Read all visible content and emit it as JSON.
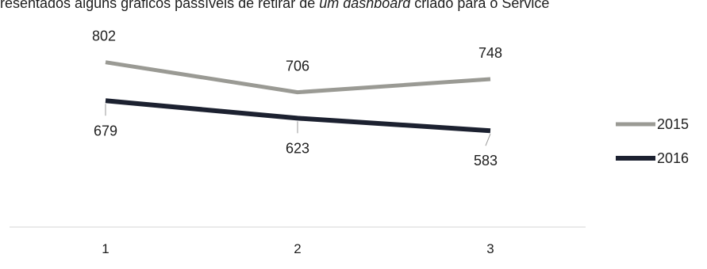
{
  "caption": {
    "prefix": "resentados alguns gráficos passíveis de retirar de ",
    "italic1": "um dashboard",
    "suffix": " criado para o Service"
  },
  "chart_data": {
    "type": "line",
    "categories": [
      "1",
      "2",
      "3"
    ],
    "series": [
      {
        "name": "2015",
        "values": [
          802,
          706,
          748
        ],
        "color": "#9a9a94"
      },
      {
        "name": "2016",
        "values": [
          679,
          623,
          583
        ],
        "color": "#1c2130"
      }
    ],
    "title": "",
    "xlabel": "",
    "ylabel": "",
    "ylim": [
      300,
      900
    ],
    "grid": false,
    "legend": "right"
  }
}
